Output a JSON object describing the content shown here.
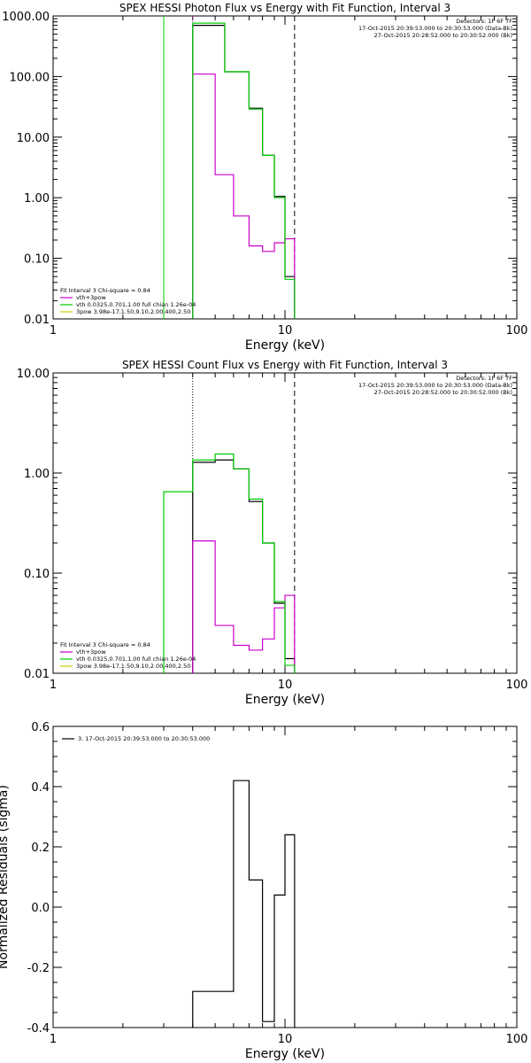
{
  "chart_data": [
    {
      "type": "step",
      "title": "SPEX HESSI Photon Flux vs Energy with Fit Function, Interval 3",
      "xlabel": "Energy (keV)",
      "ylabel": "",
      "xscale": "log",
      "yscale": "log",
      "xlim": [
        1,
        100
      ],
      "ylim": [
        0.01,
        1000
      ],
      "xticks": [
        "1",
        "10",
        "100"
      ],
      "yticks": [
        "0.01",
        "0.10",
        "1.00",
        "10.00",
        "100.00",
        "1000.00"
      ],
      "header": [
        "Detectors: 1F 6F 7F",
        "17-Oct-2015 20:39:53.000 to 20:30:53.000 (Data-Bk)",
        "27-Oct-2015 20:28:52.000 to 20:30:52.000 (Bk)"
      ],
      "legend": [
        "Fit Interval 3   Chi-square = 0.84",
        "vth+3pow",
        "vth 0.0325,0.701,1.00  full chian 1.26e-04",
        "3pow 3.98e-17,1.50,9.10,2.00,400,2.50"
      ],
      "legend_colors": [
        "#000000",
        "#cc00cc",
        "#00cc00",
        "#cccc00"
      ],
      "vlines": [
        {
          "x": 3.0,
          "color": "#00cc00",
          "style": "solid"
        },
        {
          "x": 4.0,
          "color": "#cc00cc",
          "style": "dotted"
        },
        {
          "x": 11.0,
          "color": "#000000",
          "style": "dashed"
        }
      ],
      "series": [
        {
          "name": "Data-Bk",
          "color": "#000000",
          "edges": [
            4,
            5.5,
            7,
            8,
            9,
            10,
            11
          ],
          "values": [
            700,
            120,
            30,
            5,
            1.05,
            0.05
          ]
        },
        {
          "name": "Bk",
          "color": "#cc00cc",
          "edges": [
            4,
            5,
            6,
            7,
            8,
            9,
            10,
            11
          ],
          "values": [
            110,
            2.4,
            0.5,
            0.16,
            0.13,
            0.18,
            0.21
          ]
        },
        {
          "name": "vth+3pow",
          "color": "#00cc00",
          "edges": [
            4,
            5.5,
            7,
            8,
            9,
            10,
            11
          ],
          "values": [
            760,
            120,
            29,
            5,
            1.0,
            0.045
          ]
        }
      ]
    },
    {
      "type": "step",
      "title": "SPEX HESSI Count Flux vs Energy with Fit Function, Interval 3",
      "xlabel": "Energy (keV)",
      "ylabel": "",
      "xscale": "log",
      "yscale": "log",
      "xlim": [
        1,
        100
      ],
      "ylim": [
        0.01,
        10
      ],
      "xticks": [
        "1",
        "10",
        "100"
      ],
      "yticks": [
        "0.01",
        "0.10",
        "1.00",
        "10.00"
      ],
      "header": [
        "Detectors: 1F 6F 7F",
        "17-Oct-2015 20:39:53.000 to 20:30:53.000 (Data-Bk)",
        "27-Oct-2015 20:28:52.000 to 20:30:52.000 (Bk)"
      ],
      "legend": [
        "Fit Interval 3   Chi-square = 0.84",
        "vth+3pow",
        "vth 0.0325,0.701,1.00  full chian 1.26e-04",
        "3pow 3.98e-17,1.50,9.10,2.00,400,2.50"
      ],
      "legend_colors": [
        "#000000",
        "#cc00cc",
        "#00cc00",
        "#cccc00"
      ],
      "vlines": [
        {
          "x": 4.0,
          "color": "#000000",
          "style": "dotted"
        },
        {
          "x": 11.0,
          "color": "#000000",
          "style": "dashed"
        }
      ],
      "series": [
        {
          "name": "Data-Bk",
          "color": "#000000",
          "edges": [
            4,
            5,
            6,
            7,
            8,
            9,
            10,
            11
          ],
          "values": [
            1.28,
            1.35,
            1.1,
            0.52,
            0.2,
            0.05,
            0.014
          ]
        },
        {
          "name": "Bk",
          "color": "#cc00cc",
          "edges": [
            4,
            5,
            6,
            7,
            8,
            9,
            10,
            11
          ],
          "values": [
            0.21,
            0.03,
            0.019,
            0.017,
            0.022,
            0.045,
            0.06
          ]
        },
        {
          "name": "vth+3pow",
          "color": "#00cc00",
          "edges": [
            3,
            4,
            5,
            6,
            7,
            8,
            9,
            10,
            11
          ],
          "values": [
            0.65,
            1.35,
            1.55,
            1.1,
            0.55,
            0.2,
            0.052,
            0.012
          ]
        }
      ]
    },
    {
      "type": "step",
      "title": "",
      "xlabel": "Energy (keV)",
      "ylabel": "Normalized Residuals (sigma)",
      "xscale": "log",
      "yscale": "linear",
      "xlim": [
        1,
        100
      ],
      "ylim": [
        -0.4,
        0.6
      ],
      "xticks": [
        "1",
        "10",
        "100"
      ],
      "yticks": [
        "-0.4",
        "-0.2",
        "0.0",
        "0.2",
        "0.4",
        "0.6"
      ],
      "legend": [
        "3. 17-Oct-2015 20:39:53.000 to 20:30:53.000"
      ],
      "legend_colors": [
        "#000000"
      ],
      "series": [
        {
          "name": "3. 17-Oct-2015 20:39:53.000 to 20:30:53.000",
          "color": "#000000",
          "edges": [
            4,
            6,
            7,
            8,
            9,
            10,
            11
          ],
          "values": [
            -0.28,
            0.42,
            0.09,
            -0.38,
            0.04,
            0.24
          ]
        }
      ]
    }
  ]
}
